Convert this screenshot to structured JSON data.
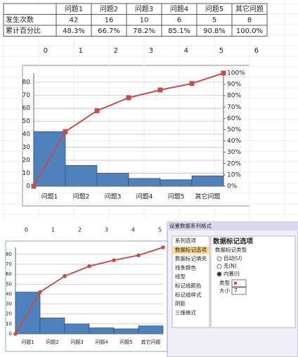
{
  "table": {
    "header": [
      "问题1",
      "问题2",
      "问题3",
      "问题4",
      "问题5",
      "其它问题"
    ],
    "rows": [
      {
        "label": "发生次数",
        "cells": [
          "42",
          "16",
          "10",
          "6",
          "5",
          "8"
        ]
      },
      {
        "label": "累计百分比",
        "cells": [
          "48.3%",
          "66.7%",
          "78.2%",
          "85.1%",
          "90.8%",
          "100.0%"
        ]
      }
    ]
  },
  "ruler_top": [
    0,
    1,
    2,
    3,
    4,
    5,
    6
  ],
  "ruler_bottom": [
    0,
    1,
    2,
    3,
    4,
    5
  ],
  "chart_data": [
    {
      "type": "combo",
      "categories": [
        "问题1",
        "问题2",
        "问题3",
        "问题4",
        "问题5",
        "其它问题"
      ],
      "series": [
        {
          "type": "bar",
          "color": "#4f81bd",
          "values": [
            42,
            16,
            10,
            6,
            5,
            8
          ]
        },
        {
          "type": "line",
          "color": "#c0504d",
          "marker": "square",
          "axis": "y2",
          "x": [
            0,
            1,
            2,
            3,
            4,
            5,
            6
          ],
          "values": [
            0,
            48.3,
            66.7,
            78.2,
            85.1,
            90.8,
            100
          ]
        }
      ],
      "ylim": [
        0,
        87
      ],
      "yticks": [
        0,
        10,
        20,
        30,
        40,
        50,
        60,
        70,
        80
      ],
      "y2lim": [
        0,
        100
      ],
      "y2ticks": [
        {
          "value": 0,
          "label": "0%"
        },
        {
          "value": 10,
          "label": "10%"
        },
        {
          "value": 20,
          "label": "20%"
        },
        {
          "value": 30,
          "label": "30%"
        },
        {
          "value": 40,
          "label": "40%"
        },
        {
          "value": 50,
          "label": "50%"
        },
        {
          "value": 60,
          "label": "60%"
        },
        {
          "value": 70,
          "label": "70%"
        },
        {
          "value": 80,
          "label": "80%"
        },
        {
          "value": 90,
          "label": "90%"
        },
        {
          "value": 100,
          "label": "100%"
        }
      ],
      "grid": true
    },
    {
      "type": "combo",
      "categories": [
        "问题1",
        "问题2",
        "问题3",
        "问题4",
        "问题5",
        "其它问题"
      ],
      "series": [
        {
          "type": "bar",
          "color": "#4f81bd",
          "values": [
            42,
            16,
            10,
            6,
            5,
            8
          ]
        },
        {
          "type": "line",
          "color": "#c0504d",
          "marker": "circle",
          "axis": "y2",
          "x": [
            0,
            1,
            2,
            3,
            4,
            5,
            6
          ],
          "values": [
            0,
            48.3,
            66.7,
            78.2,
            85.1,
            90.8,
            100
          ]
        }
      ],
      "ylim": [
        0,
        87
      ],
      "yticks": [
        0,
        10,
        20,
        30,
        40,
        50,
        60,
        70,
        80
      ],
      "y2lim": [
        0,
        100
      ],
      "grid": true
    }
  ],
  "dialog": {
    "title": "设置数据系列格式",
    "menu": [
      "系列选项",
      "数据标记选项",
      "数据标记填充",
      "线条颜色",
      "线型",
      "标记线颜色",
      "标记线样式",
      "阴影",
      "三维格式"
    ],
    "selected": 1,
    "panel": {
      "heading": "数据标记选项",
      "group": "数据标记类型",
      "options": [
        "自动(U)",
        "无(N)",
        "内置(I)"
      ],
      "checked": 2,
      "type_label": "类型",
      "size_label": "大小",
      "size": 7
    }
  }
}
